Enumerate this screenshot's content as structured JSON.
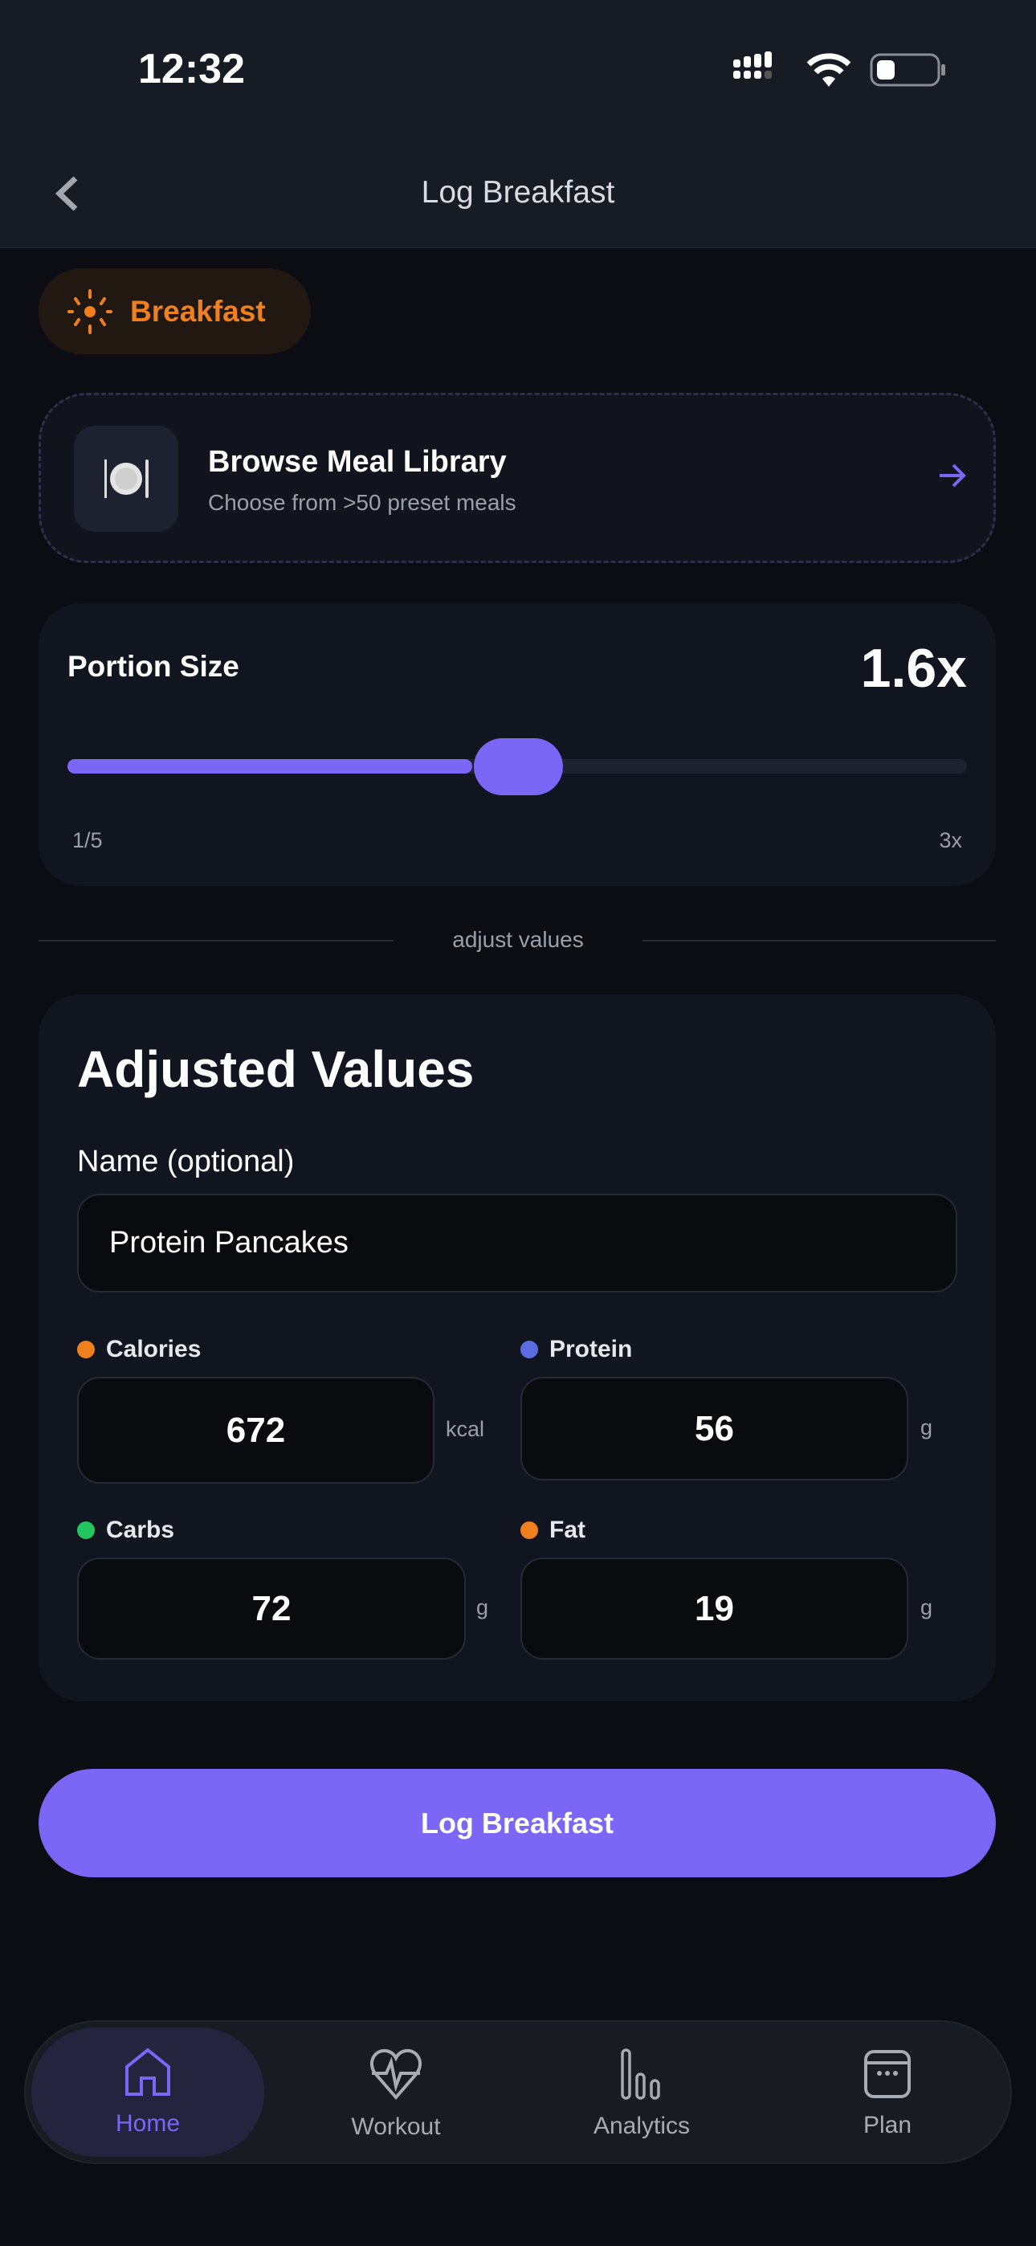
{
  "status_bar": {
    "time": "12:32"
  },
  "header": {
    "title": "Log Breakfast"
  },
  "meal_chip": {
    "label": "Breakfast"
  },
  "browse": {
    "title": "Browse Meal Library",
    "subtitle": "Choose from >50 preset meals"
  },
  "portion": {
    "label": "Portion Size",
    "value_text": "1.6x",
    "value": 1.6,
    "min_label": "1/5",
    "max_label": "3x",
    "fill_fraction": 0.45
  },
  "divider": {
    "label": "adjust values"
  },
  "adjusted": {
    "title": "Adjusted Values",
    "name_label": "Name (optional)",
    "name_value": "Protein Pancakes",
    "calories": {
      "label": "Calories",
      "value": "672",
      "unit": "kcal",
      "color": "#f07f1e"
    },
    "protein": {
      "label": "Protein",
      "value": "56",
      "unit": "g",
      "color": "#5b6ee1"
    },
    "carbs": {
      "label": "Carbs",
      "value": "72",
      "unit": "g",
      "color": "#22c55e"
    },
    "fat": {
      "label": "Fat",
      "value": "19",
      "unit": "g",
      "color": "#f07f1e"
    }
  },
  "submit": {
    "label": "Log Breakfast"
  },
  "nav": {
    "items": [
      {
        "label": "Home",
        "active": true
      },
      {
        "label": "Workout"
      },
      {
        "label": "Analytics"
      },
      {
        "label": "Plan"
      }
    ]
  },
  "colors": {
    "accent": "#7b66f6",
    "orange": "#f07f1e"
  }
}
